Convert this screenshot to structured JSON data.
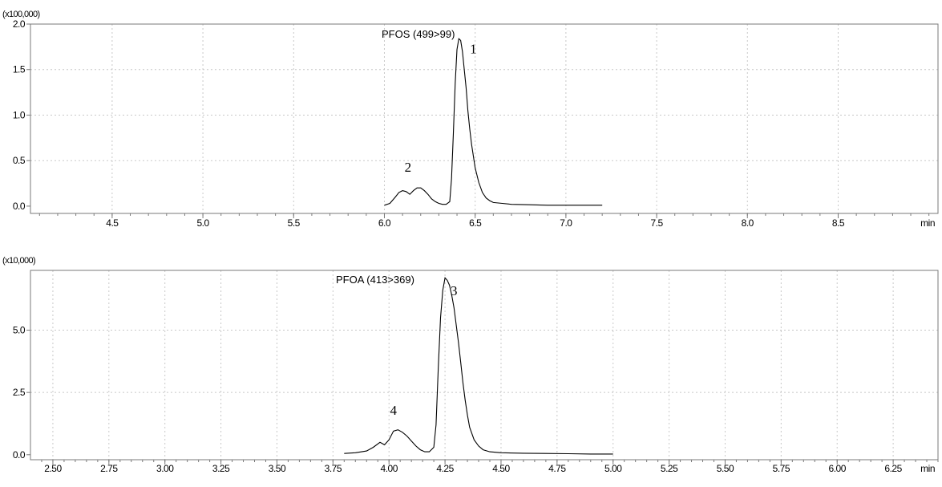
{
  "chart_data": [
    {
      "type": "line",
      "title": "PFOS (499>99)",
      "multiplier_label": "(x100,000)",
      "x_unit_label": "min",
      "xlim": [
        4.05,
        9.05
      ],
      "ylim": [
        -0.08,
        2.0
      ],
      "x_ticks": [
        4.5,
        5.0,
        5.5,
        6.0,
        6.5,
        7.0,
        7.5,
        8.0,
        8.5
      ],
      "x_tick_labels": [
        "4.5",
        "5.0",
        "5.5",
        "6.0",
        "6.5",
        "7.0",
        "7.5",
        "8.0",
        "8.5"
      ],
      "y_ticks": [
        0.0,
        0.5,
        1.0,
        1.5,
        2.0
      ],
      "y_tick_labels": [
        "0.0",
        "0.5",
        "1.0",
        "1.5",
        "2.0"
      ],
      "grid": true,
      "series": [
        {
          "x": [
            6.0,
            6.03,
            6.06,
            6.08,
            6.1,
            6.12,
            6.14,
            6.16,
            6.18,
            6.2,
            6.22,
            6.24,
            6.26,
            6.28,
            6.3,
            6.32,
            6.34,
            6.36,
            6.37,
            6.38,
            6.39,
            6.4,
            6.41,
            6.42,
            6.43,
            6.44,
            6.45,
            6.46,
            6.47,
            6.48,
            6.5,
            6.52,
            6.54,
            6.56,
            6.58,
            6.6,
            6.65,
            6.7,
            6.8,
            6.9,
            7.0,
            7.1,
            7.2
          ],
          "y": [
            0.01,
            0.03,
            0.1,
            0.15,
            0.17,
            0.16,
            0.13,
            0.17,
            0.2,
            0.2,
            0.17,
            0.13,
            0.08,
            0.05,
            0.03,
            0.02,
            0.02,
            0.05,
            0.3,
            0.8,
            1.35,
            1.72,
            1.84,
            1.82,
            1.7,
            1.5,
            1.3,
            1.05,
            0.85,
            0.68,
            0.42,
            0.26,
            0.15,
            0.09,
            0.06,
            0.04,
            0.03,
            0.02,
            0.015,
            0.01,
            0.01,
            0.01,
            0.01
          ]
        }
      ],
      "annotations": [
        {
          "text": "1",
          "x": 6.49,
          "y": 1.68
        },
        {
          "text": "2",
          "x": 6.13,
          "y": 0.38
        }
      ]
    },
    {
      "type": "line",
      "title": "PFOA (413>369)",
      "multiplier_label": "(x10,000)",
      "x_unit_label": "min",
      "xlim": [
        2.4,
        6.45
      ],
      "ylim": [
        -0.2,
        7.4
      ],
      "x_ticks": [
        2.5,
        2.75,
        3.0,
        3.25,
        3.5,
        3.75,
        4.0,
        4.25,
        4.5,
        4.75,
        5.0,
        5.25,
        5.5,
        5.75,
        6.0,
        6.25
      ],
      "x_tick_labels": [
        "2.50",
        "2.75",
        "3.00",
        "3.25",
        "3.50",
        "3.75",
        "4.00",
        "4.25",
        "4.50",
        "4.75",
        "5.00",
        "5.25",
        "5.50",
        "5.75",
        "6.00",
        "6.25"
      ],
      "y_ticks": [
        0.0,
        2.5,
        5.0
      ],
      "y_tick_labels": [
        "0.0",
        "2.5",
        "5.0"
      ],
      "grid": true,
      "series": [
        {
          "x": [
            3.8,
            3.85,
            3.9,
            3.93,
            3.96,
            3.98,
            4.0,
            4.02,
            4.04,
            4.06,
            4.08,
            4.1,
            4.12,
            4.14,
            4.16,
            4.18,
            4.2,
            4.21,
            4.22,
            4.23,
            4.24,
            4.25,
            4.26,
            4.27,
            4.28,
            4.29,
            4.3,
            4.31,
            4.32,
            4.33,
            4.34,
            4.35,
            4.36,
            4.38,
            4.4,
            4.42,
            4.45,
            4.5,
            4.6,
            4.7,
            4.8,
            4.9,
            5.0
          ],
          "y": [
            0.05,
            0.08,
            0.15,
            0.3,
            0.5,
            0.4,
            0.6,
            0.95,
            1.0,
            0.9,
            0.75,
            0.55,
            0.35,
            0.2,
            0.12,
            0.12,
            0.3,
            1.2,
            3.5,
            5.5,
            6.6,
            7.1,
            7.0,
            6.8,
            6.4,
            5.9,
            5.2,
            4.5,
            3.7,
            2.9,
            2.2,
            1.6,
            1.1,
            0.6,
            0.35,
            0.2,
            0.12,
            0.08,
            0.06,
            0.05,
            0.04,
            0.03,
            0.03
          ]
        }
      ],
      "annotations": [
        {
          "text": "3",
          "x": 4.29,
          "y": 6.4
        },
        {
          "text": "4",
          "x": 4.02,
          "y": 1.6
        }
      ]
    }
  ]
}
